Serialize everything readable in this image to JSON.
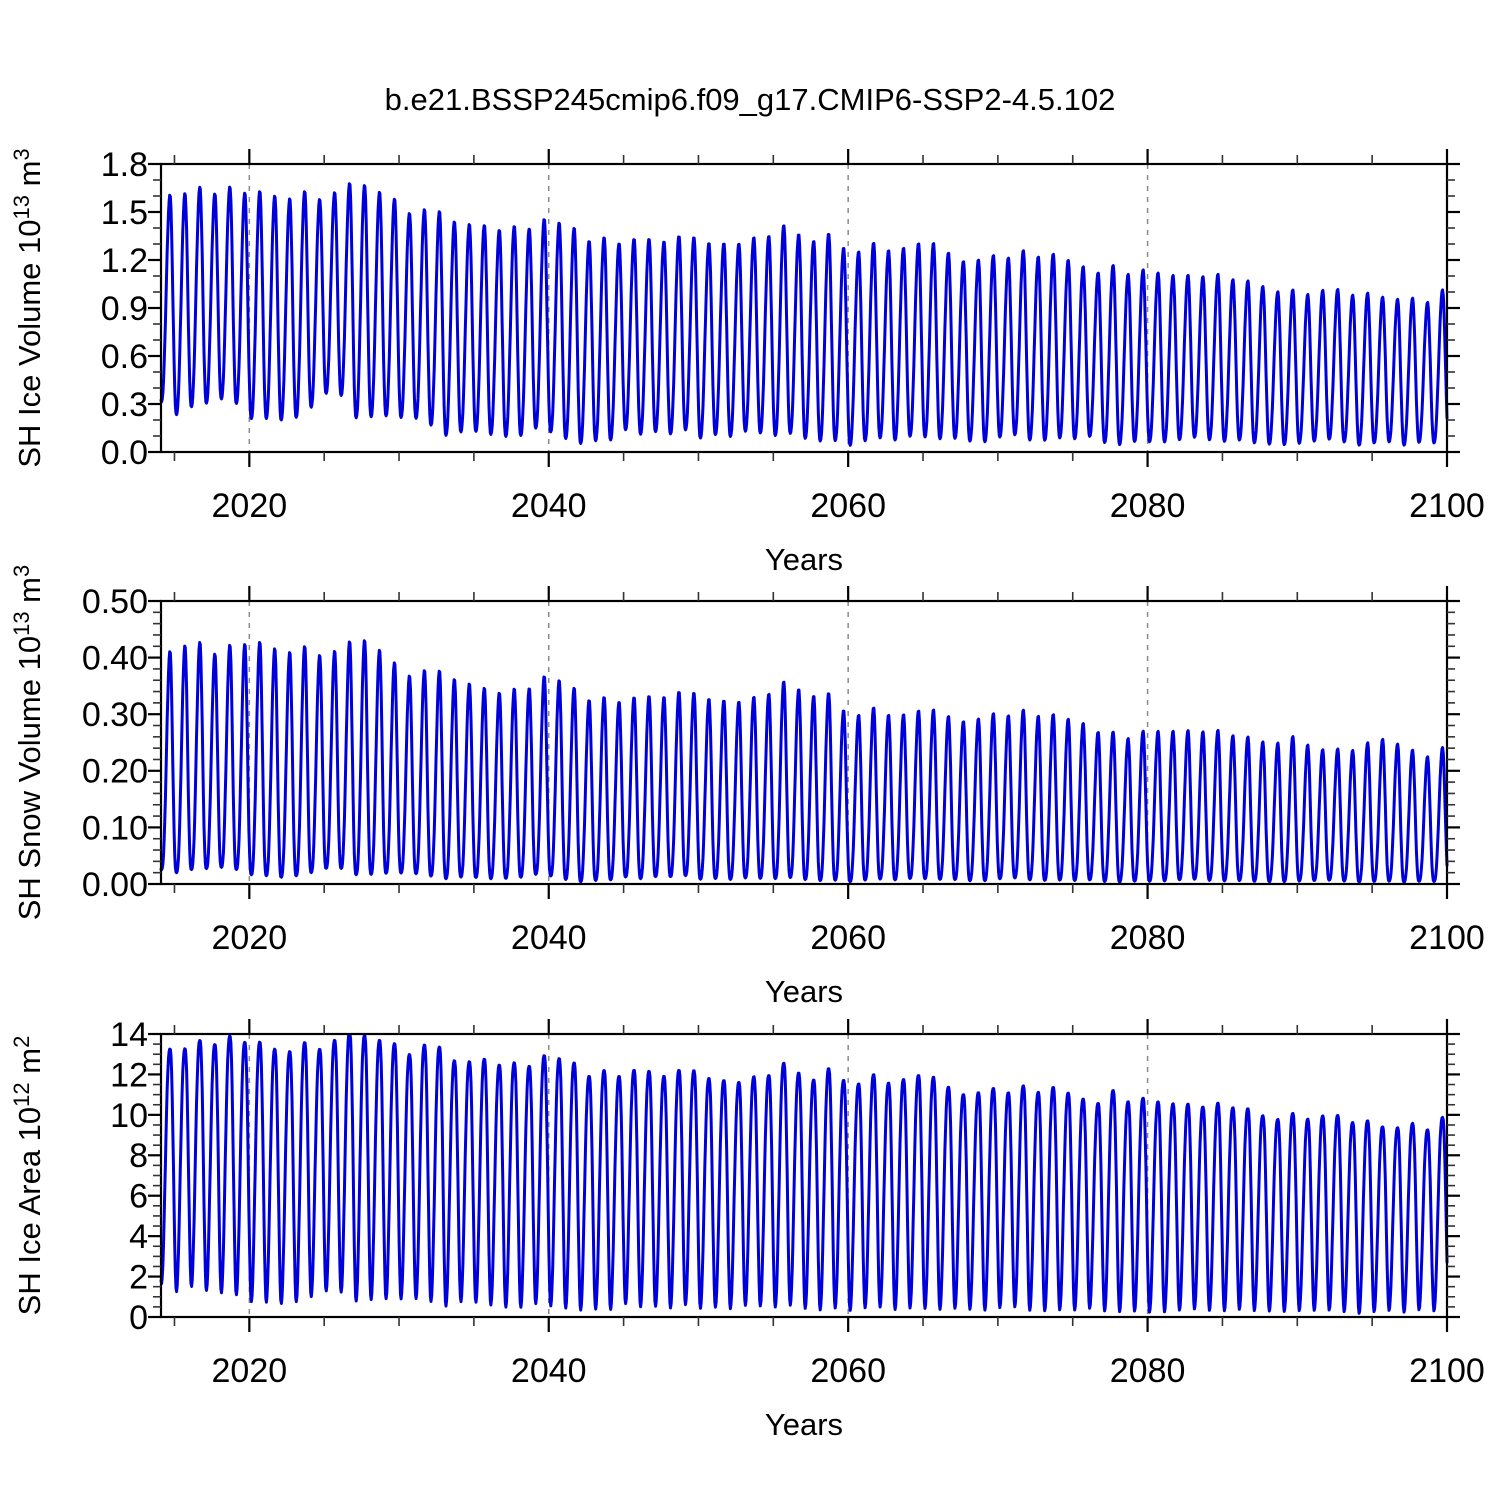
{
  "page": {
    "title": "b.e21.BSSP245cmip6.f09_g17.CMIP6-SSP2-4.5.102",
    "background": "#ffffff"
  },
  "chart_data": [
    {
      "type": "line",
      "panel": "sh-ice-volume",
      "title": "",
      "xlabel": "Years",
      "ylabel_text": "SH Ice Volume 10^13 m^3",
      "ylabel_parts": [
        {
          "t": "SH Ice Volume 10",
          "sup": false
        },
        {
          "t": "13",
          "sup": true
        },
        {
          "t": " m",
          "sup": false
        },
        {
          "t": "3",
          "sup": true
        }
      ],
      "x_range": [
        2014.1,
        2100
      ],
      "x_ticks": [
        2020,
        2040,
        2060,
        2080,
        2100
      ],
      "x_tick_labels": [
        "2020",
        "2040",
        "2060",
        "2080",
        "2100"
      ],
      "x_minor_step": 5,
      "grid_x": [
        2020,
        2040,
        2060,
        2080
      ],
      "ylim": [
        0,
        1.8
      ],
      "y_tick_values": [
        0.0,
        0.3,
        0.6,
        0.9,
        1.2,
        1.5,
        1.8
      ],
      "y_tick_labels": [
        "0.0",
        "0.3",
        "0.6",
        "0.9",
        "1.2",
        "1.5",
        "1.8"
      ],
      "y_minor_step": 0.1,
      "line_color": "#0000DC",
      "series": [
        {
          "name": "SH Ice Volume",
          "period_years": 1,
          "envelope_years": [
            2014.1,
            2016,
            2018,
            2020,
            2022,
            2024,
            2026,
            2028,
            2030,
            2032,
            2034,
            2036,
            2038,
            2040,
            2042,
            2044,
            2046,
            2048,
            2050,
            2052,
            2054,
            2056,
            2058,
            2060,
            2062,
            2064,
            2066,
            2068,
            2070,
            2072,
            2074,
            2076,
            2078,
            2080,
            2082,
            2084,
            2086,
            2088,
            2090,
            2092,
            2094,
            2096,
            2098,
            2100
          ],
          "annual_max": [
            1.62,
            1.66,
            1.6,
            1.61,
            1.6,
            1.63,
            1.64,
            1.62,
            1.55,
            1.48,
            1.47,
            1.44,
            1.43,
            1.42,
            1.38,
            1.34,
            1.33,
            1.33,
            1.31,
            1.33,
            1.38,
            1.4,
            1.35,
            1.28,
            1.3,
            1.28,
            1.27,
            1.22,
            1.22,
            1.27,
            1.24,
            1.18,
            1.12,
            1.13,
            1.14,
            1.1,
            1.07,
            1.03,
            1.0,
            1.04,
            1.01,
            0.97,
            0.95,
            0.99
          ],
          "annual_min": [
            0.25,
            0.22,
            0.28,
            0.25,
            0.17,
            0.28,
            0.32,
            0.26,
            0.22,
            0.18,
            0.1,
            0.12,
            0.13,
            0.13,
            0.07,
            0.1,
            0.12,
            0.13,
            0.1,
            0.12,
            0.12,
            0.1,
            0.09,
            0.05,
            0.08,
            0.1,
            0.1,
            0.07,
            0.08,
            0.1,
            0.1,
            0.08,
            0.05,
            0.08,
            0.08,
            0.07,
            0.06,
            0.05,
            0.05,
            0.07,
            0.06,
            0.05,
            0.05,
            0.06
          ]
        }
      ]
    },
    {
      "type": "line",
      "panel": "sh-snow-volume",
      "title": "",
      "xlabel": "Years",
      "ylabel_text": "SH Snow Volume 10^13 m^3",
      "ylabel_parts": [
        {
          "t": "SH Snow Volume 10",
          "sup": false
        },
        {
          "t": "13",
          "sup": true
        },
        {
          "t": " m",
          "sup": false
        },
        {
          "t": "3",
          "sup": true
        }
      ],
      "x_range": [
        2014.1,
        2100
      ],
      "x_ticks": [
        2020,
        2040,
        2060,
        2080,
        2100
      ],
      "x_tick_labels": [
        "2020",
        "2040",
        "2060",
        "2080",
        "2100"
      ],
      "x_minor_step": 5,
      "grid_x": [
        2020,
        2040,
        2060,
        2080
      ],
      "ylim": [
        0,
        0.5
      ],
      "y_tick_values": [
        0.0,
        0.1,
        0.2,
        0.3,
        0.4,
        0.5
      ],
      "y_tick_labels": [
        "0.00",
        "0.10",
        "0.20",
        "0.30",
        "0.40",
        "0.50"
      ],
      "y_minor_step": 0.02,
      "line_color": "#0000DC",
      "series": [
        {
          "name": "SH Snow Volume",
          "period_years": 1,
          "envelope_years": [
            2014.1,
            2016,
            2018,
            2020,
            2022,
            2024,
            2026,
            2028,
            2030,
            2032,
            2034,
            2036,
            2038,
            2040,
            2042,
            2044,
            2046,
            2048,
            2050,
            2052,
            2054,
            2056,
            2058,
            2060,
            2062,
            2064,
            2066,
            2068,
            2070,
            2072,
            2074,
            2076,
            2078,
            2080,
            2082,
            2084,
            2086,
            2088,
            2090,
            2092,
            2094,
            2096,
            2098,
            2100
          ],
          "annual_max": [
            0.41,
            0.435,
            0.4,
            0.425,
            0.415,
            0.42,
            0.415,
            0.42,
            0.38,
            0.37,
            0.37,
            0.35,
            0.35,
            0.36,
            0.34,
            0.33,
            0.33,
            0.335,
            0.33,
            0.33,
            0.34,
            0.355,
            0.34,
            0.305,
            0.31,
            0.3,
            0.3,
            0.295,
            0.3,
            0.31,
            0.3,
            0.29,
            0.255,
            0.27,
            0.28,
            0.27,
            0.26,
            0.25,
            0.26,
            0.24,
            0.245,
            0.26,
            0.23,
            0.235
          ],
          "annual_min": [
            0.02,
            0.02,
            0.025,
            0.02,
            0.01,
            0.02,
            0.025,
            0.02,
            0.02,
            0.015,
            0.01,
            0.01,
            0.015,
            0.015,
            0.005,
            0.01,
            0.01,
            0.015,
            0.01,
            0.01,
            0.01,
            0.01,
            0.008,
            0.005,
            0.008,
            0.01,
            0.01,
            0.006,
            0.008,
            0.01,
            0.008,
            0.006,
            0.004,
            0.006,
            0.008,
            0.006,
            0.005,
            0.004,
            0.005,
            0.006,
            0.005,
            0.004,
            0.004,
            0.005
          ]
        }
      ]
    },
    {
      "type": "line",
      "panel": "sh-ice-area",
      "title": "",
      "xlabel": "Years",
      "ylabel_text": "SH Ice Area 10^12 m^2",
      "ylabel_parts": [
        {
          "t": "SH Ice Area 10",
          "sup": false
        },
        {
          "t": "12",
          "sup": true
        },
        {
          "t": " m",
          "sup": false
        },
        {
          "t": "2",
          "sup": true
        }
      ],
      "x_range": [
        2014.1,
        2100
      ],
      "x_ticks": [
        2020,
        2040,
        2060,
        2080,
        2100
      ],
      "x_tick_labels": [
        "2020",
        "2040",
        "2060",
        "2080",
        "2100"
      ],
      "x_minor_step": 5,
      "grid_x": [
        2020,
        2040,
        2060,
        2080
      ],
      "ylim": [
        0,
        14
      ],
      "y_tick_values": [
        0,
        2,
        4,
        6,
        8,
        10,
        12,
        14
      ],
      "y_tick_labels": [
        "0",
        "2",
        "4",
        "6",
        "8",
        "10",
        "12",
        "14"
      ],
      "y_minor_step": 0.5,
      "line_color": "#0000DC",
      "series": [
        {
          "name": "SH Ice Area",
          "period_years": 1,
          "envelope_years": [
            2014.1,
            2016,
            2018,
            2020,
            2022,
            2024,
            2026,
            2028,
            2030,
            2032,
            2034,
            2036,
            2038,
            2040,
            2042,
            2044,
            2046,
            2048,
            2050,
            2052,
            2054,
            2056,
            2058,
            2060,
            2062,
            2064,
            2066,
            2068,
            2070,
            2072,
            2074,
            2076,
            2078,
            2080,
            2082,
            2084,
            2086,
            2088,
            2090,
            2092,
            2094,
            2096,
            2098,
            2100
          ],
          "annual_max": [
            13.4,
            13.6,
            13.4,
            13.5,
            13.2,
            13.6,
            13.85,
            13.5,
            13.3,
            13.2,
            12.9,
            13.0,
            12.7,
            12.6,
            12.4,
            12.2,
            12.2,
            12.0,
            11.9,
            11.9,
            12.2,
            12.4,
            12.0,
            11.8,
            11.9,
            11.8,
            11.5,
            11.3,
            11.2,
            11.5,
            11.4,
            11.0,
            10.8,
            10.7,
            10.9,
            10.4,
            10.3,
            9.9,
            10.0,
            10.2,
            9.9,
            9.4,
            9.5,
            9.6
          ],
          "annual_min": [
            1.3,
            1.2,
            1.0,
            0.9,
            0.55,
            1.0,
            1.1,
            1.0,
            0.9,
            0.8,
            0.6,
            0.65,
            0.6,
            0.55,
            0.45,
            0.5,
            0.55,
            0.5,
            0.5,
            0.5,
            0.55,
            0.5,
            0.45,
            0.4,
            0.45,
            0.45,
            0.45,
            0.4,
            0.4,
            0.45,
            0.4,
            0.35,
            0.3,
            0.3,
            0.35,
            0.3,
            0.3,
            0.3,
            0.3,
            0.3,
            0.25,
            0.25,
            0.3,
            0.3
          ]
        }
      ]
    }
  ]
}
